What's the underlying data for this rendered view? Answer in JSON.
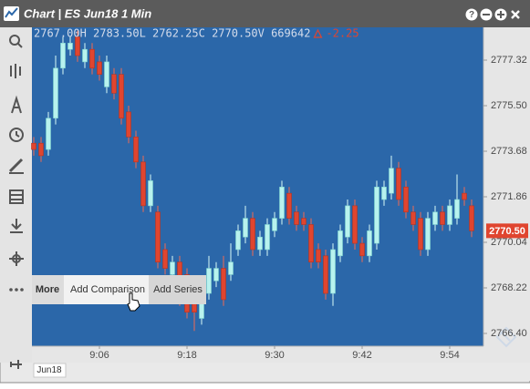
{
  "window": {
    "title": "Chart | ES Jun18 1 Min",
    "help": "?"
  },
  "menu": {
    "items": [
      "More",
      "Add Comparison",
      "Add Series"
    ]
  },
  "tabs": [
    "Jun18"
  ],
  "chart_data": {
    "type": "candlestick",
    "stats": "2767.00H 2783.50L 2762.25C 2770.50V 669642",
    "change": "-2.25",
    "last_price": {
      "value": 2770.5,
      "label": "2770.50"
    },
    "up_color": "#b8f2ee",
    "down_color": "#e0452f",
    "background": "#2b67a9",
    "ylim": [
      2765.89,
      2778.63
    ],
    "yticks": [
      2777.32,
      {
        "value": 2775.5,
        "label": "2775.50"
      },
      2773.68,
      2771.86,
      2770.04,
      2768.22,
      {
        "value": 2766.4,
        "label": "2766.40"
      }
    ],
    "categories": [
      null,
      null,
      null,
      null,
      null,
      null,
      null,
      null,
      null,
      "9:06",
      null,
      null,
      null,
      null,
      null,
      null,
      null,
      null,
      null,
      null,
      null,
      "9:18",
      null,
      null,
      null,
      null,
      null,
      null,
      null,
      null,
      null,
      null,
      null,
      "9:30",
      null,
      null,
      null,
      null,
      null,
      null,
      null,
      null,
      null,
      null,
      null,
      "9:42",
      null,
      null,
      null,
      null,
      null,
      null,
      null,
      null,
      null,
      null,
      null,
      "9:54",
      null,
      null,
      null
    ],
    "open": [
      2774.0,
      2774.0,
      2773.75,
      2775.0,
      2777.0,
      2777.75,
      2778.25,
      2777.25,
      2777.75,
      2777.25,
      2776.25,
      2776.75,
      2776.75,
      2775.25,
      2774.25,
      2773.25,
      2771.5,
      2771.25,
      2769.75,
      2768.75,
      2769.25,
      2768.75,
      2767.75,
      2767.0,
      2768.0,
      2768.5,
      2769.0,
      2768.75,
      2769.75,
      2770.25,
      2771.0,
      2769.75,
      2769.75,
      2770.5,
      2771.0,
      2772.0,
      2771.25,
      2771.0,
      2770.75,
      2769.75,
      2769.5,
      2768.0,
      2769.5,
      2770.25,
      2771.5,
      2770.0,
      2769.5,
      2770.0,
      2771.75,
      2772.0,
      2773.0,
      2772.25,
      2771.25,
      2771.0,
      2769.75,
      2770.75,
      2771.25,
      2770.75,
      2771.0,
      2772.0,
      2771.5
    ],
    "high": [
      2774.25,
      2774.25,
      2775.25,
      2777.5,
      2778.25,
      2778.25,
      2778.5,
      2778.0,
      2778.0,
      2777.5,
      2777.5,
      2777.0,
      2777.0,
      2775.5,
      2774.5,
      2773.5,
      2772.75,
      2771.5,
      2770.0,
      2769.5,
      2769.5,
      2769.0,
      2768.0,
      2768.25,
      2769.5,
      2769.25,
      2769.5,
      2770.0,
      2770.75,
      2771.5,
      2771.25,
      2770.5,
      2771.0,
      2771.25,
      2772.5,
      2772.25,
      2771.5,
      2771.25,
      2771.0,
      2770.0,
      2769.75,
      2770.0,
      2770.75,
      2771.75,
      2771.75,
      2770.25,
      2770.75,
      2772.5,
      2772.5,
      2773.5,
      2773.25,
      2772.5,
      2771.5,
      2771.25,
      2771.25,
      2771.5,
      2771.5,
      2771.75,
      2772.75,
      2772.25,
      2771.75
    ],
    "low": [
      2773.5,
      2773.25,
      2773.5,
      2774.75,
      2776.75,
      2777.5,
      2777.25,
      2777.0,
      2776.75,
      2776.5,
      2776.0,
      2775.75,
      2774.75,
      2774.0,
      2773.0,
      2771.25,
      2771.25,
      2769.0,
      2768.75,
      2768.5,
      2767.5,
      2767.0,
      2766.5,
      2766.75,
      2767.75,
      2768.25,
      2767.5,
      2768.5,
      2769.5,
      2770.0,
      2769.5,
      2769.5,
      2769.5,
      2770.25,
      2770.75,
      2770.75,
      2770.5,
      2770.5,
      2769.0,
      2769.0,
      2767.75,
      2767.5,
      2769.25,
      2770.0,
      2769.75,
      2769.25,
      2769.25,
      2769.75,
      2771.5,
      2771.75,
      2771.5,
      2771.0,
      2770.5,
      2769.5,
      2769.5,
      2770.5,
      2770.5,
      2770.5,
      2770.75,
      2771.5,
      2770.25
    ],
    "close": [
      2773.75,
      2773.5,
      2775.0,
      2777.0,
      2778.0,
      2778.0,
      2777.5,
      2777.75,
      2777.0,
      2776.75,
      2777.25,
      2776.0,
      2775.0,
      2774.25,
      2773.25,
      2771.5,
      2772.5,
      2769.25,
      2769.0,
      2769.25,
      2767.75,
      2767.25,
      2767.25,
      2768.0,
      2769.0,
      2769.0,
      2767.75,
      2769.25,
      2770.5,
      2771.0,
      2769.75,
      2770.25,
      2770.75,
      2771.0,
      2772.25,
      2771.0,
      2770.75,
      2770.75,
      2769.25,
      2769.25,
      2768.0,
      2769.75,
      2770.5,
      2771.5,
      2770.0,
      2769.5,
      2770.5,
      2772.25,
      2772.25,
      2773.0,
      2771.75,
      2771.25,
      2770.75,
      2769.75,
      2771.0,
      2771.25,
      2770.75,
      2771.5,
      2771.75,
      2771.75,
      2770.5
    ]
  }
}
